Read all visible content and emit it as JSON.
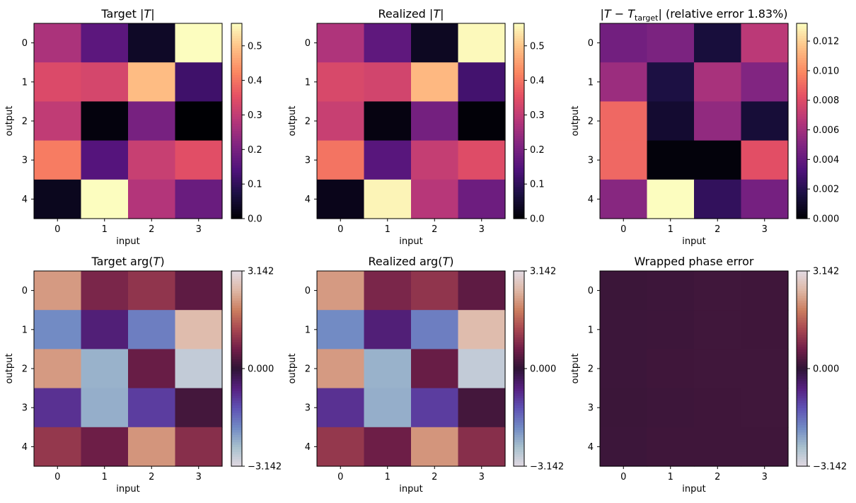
{
  "chart_data": [
    {
      "type": "heatmap",
      "title": "Target |T|",
      "xlabel": "input",
      "ylabel": "output",
      "x": [
        "0",
        "1",
        "2",
        "3"
      ],
      "y": [
        "0",
        "1",
        "2",
        "3",
        "4"
      ],
      "colormap": "magma",
      "clim": [
        0,
        0.565
      ],
      "colorbar_ticks": [
        "0.0",
        "0.1",
        "0.2",
        "0.3",
        "0.4",
        "0.5"
      ],
      "values": [
        [
          0.27,
          0.16,
          0.04,
          0.565
        ],
        [
          0.34,
          0.33,
          0.49,
          0.12
        ],
        [
          0.3,
          0.01,
          0.2,
          0.0
        ],
        [
          0.41,
          0.15,
          0.31,
          0.35
        ],
        [
          0.03,
          0.565,
          0.28,
          0.18
        ]
      ]
    },
    {
      "type": "heatmap",
      "title": "Realized |T|",
      "xlabel": "input",
      "ylabel": "output",
      "x": [
        "0",
        "1",
        "2",
        "3"
      ],
      "y": [
        "0",
        "1",
        "2",
        "3",
        "4"
      ],
      "colormap": "magma",
      "clim": [
        0,
        0.565
      ],
      "colorbar_ticks": [
        "0.0",
        "0.1",
        "0.2",
        "0.3",
        "0.4",
        "0.5"
      ],
      "values": [
        [
          0.275,
          0.165,
          0.035,
          0.56
        ],
        [
          0.335,
          0.325,
          0.485,
          0.125
        ],
        [
          0.31,
          0.015,
          0.195,
          0.005
        ],
        [
          0.4,
          0.155,
          0.305,
          0.345
        ],
        [
          0.025,
          0.555,
          0.285,
          0.185
        ]
      ]
    },
    {
      "type": "heatmap",
      "title": "|T − T_target| (relative error 1.83%)",
      "xlabel": "input",
      "ylabel": "output",
      "x": [
        "0",
        "1",
        "2",
        "3"
      ],
      "y": [
        "0",
        "1",
        "2",
        "3",
        "4"
      ],
      "colormap": "magma",
      "clim": [
        0,
        0.0132
      ],
      "colorbar_ticks": [
        "0.000",
        "0.002",
        "0.004",
        "0.006",
        "0.008",
        "0.010",
        "0.012"
      ],
      "values": [
        [
          0.0045,
          0.0048,
          0.0015,
          0.0068
        ],
        [
          0.0058,
          0.0017,
          0.0062,
          0.005
        ],
        [
          0.009,
          0.0012,
          0.0055,
          0.0014
        ],
        [
          0.009,
          0.0002,
          0.0002,
          0.0082
        ],
        [
          0.0052,
          0.0132,
          0.0024,
          0.0046
        ]
      ]
    },
    {
      "type": "heatmap",
      "title": "Target arg(T)",
      "xlabel": "input",
      "ylabel": "output",
      "x": [
        "0",
        "1",
        "2",
        "3"
      ],
      "y": [
        "0",
        "1",
        "2",
        "3",
        "4"
      ],
      "colormap": "twilight",
      "clim": [
        -3.142,
        3.142
      ],
      "colorbar_ticks": [
        "3.142",
        "0.000",
        "−3.142"
      ],
      "values": [
        [
          2.2,
          0.75,
          1.0,
          0.45
        ],
        [
          -1.9,
          -0.55,
          -1.75,
          2.6
        ],
        [
          2.2,
          -2.35,
          0.55,
          -2.8
        ],
        [
          -0.85,
          -2.3,
          -1.0,
          0.2
        ],
        [
          1.05,
          0.6,
          2.15,
          0.9
        ]
      ]
    },
    {
      "type": "heatmap",
      "title": "Realized arg(T)",
      "xlabel": "input",
      "ylabel": "output",
      "x": [
        "0",
        "1",
        "2",
        "3"
      ],
      "y": [
        "0",
        "1",
        "2",
        "3",
        "4"
      ],
      "colormap": "twilight",
      "clim": [
        -3.142,
        3.142
      ],
      "colorbar_ticks": [
        "3.142",
        "0.000",
        "−3.142"
      ],
      "values": [
        [
          2.2,
          0.75,
          1.0,
          0.45
        ],
        [
          -1.9,
          -0.55,
          -1.75,
          2.6
        ],
        [
          2.2,
          -2.35,
          0.55,
          -2.8
        ],
        [
          -0.85,
          -2.3,
          -1.0,
          0.2
        ],
        [
          1.05,
          0.6,
          2.15,
          0.9
        ]
      ]
    },
    {
      "type": "heatmap",
      "title": "Wrapped phase error",
      "xlabel": "input",
      "ylabel": "output",
      "x": [
        "0",
        "1",
        "2",
        "3"
      ],
      "y": [
        "0",
        "1",
        "2",
        "3",
        "4"
      ],
      "colormap": "twilight",
      "clim": [
        -3.142,
        3.142
      ],
      "colorbar_ticks": [
        "3.142",
        "0.000",
        "−3.142"
      ],
      "values": [
        [
          0.12,
          0.14,
          0.16,
          0.15
        ],
        [
          0.13,
          0.14,
          0.16,
          0.15
        ],
        [
          0.13,
          0.15,
          0.16,
          0.16
        ],
        [
          0.12,
          0.14,
          0.15,
          0.16
        ],
        [
          0.13,
          0.15,
          0.15,
          0.15
        ]
      ]
    }
  ]
}
